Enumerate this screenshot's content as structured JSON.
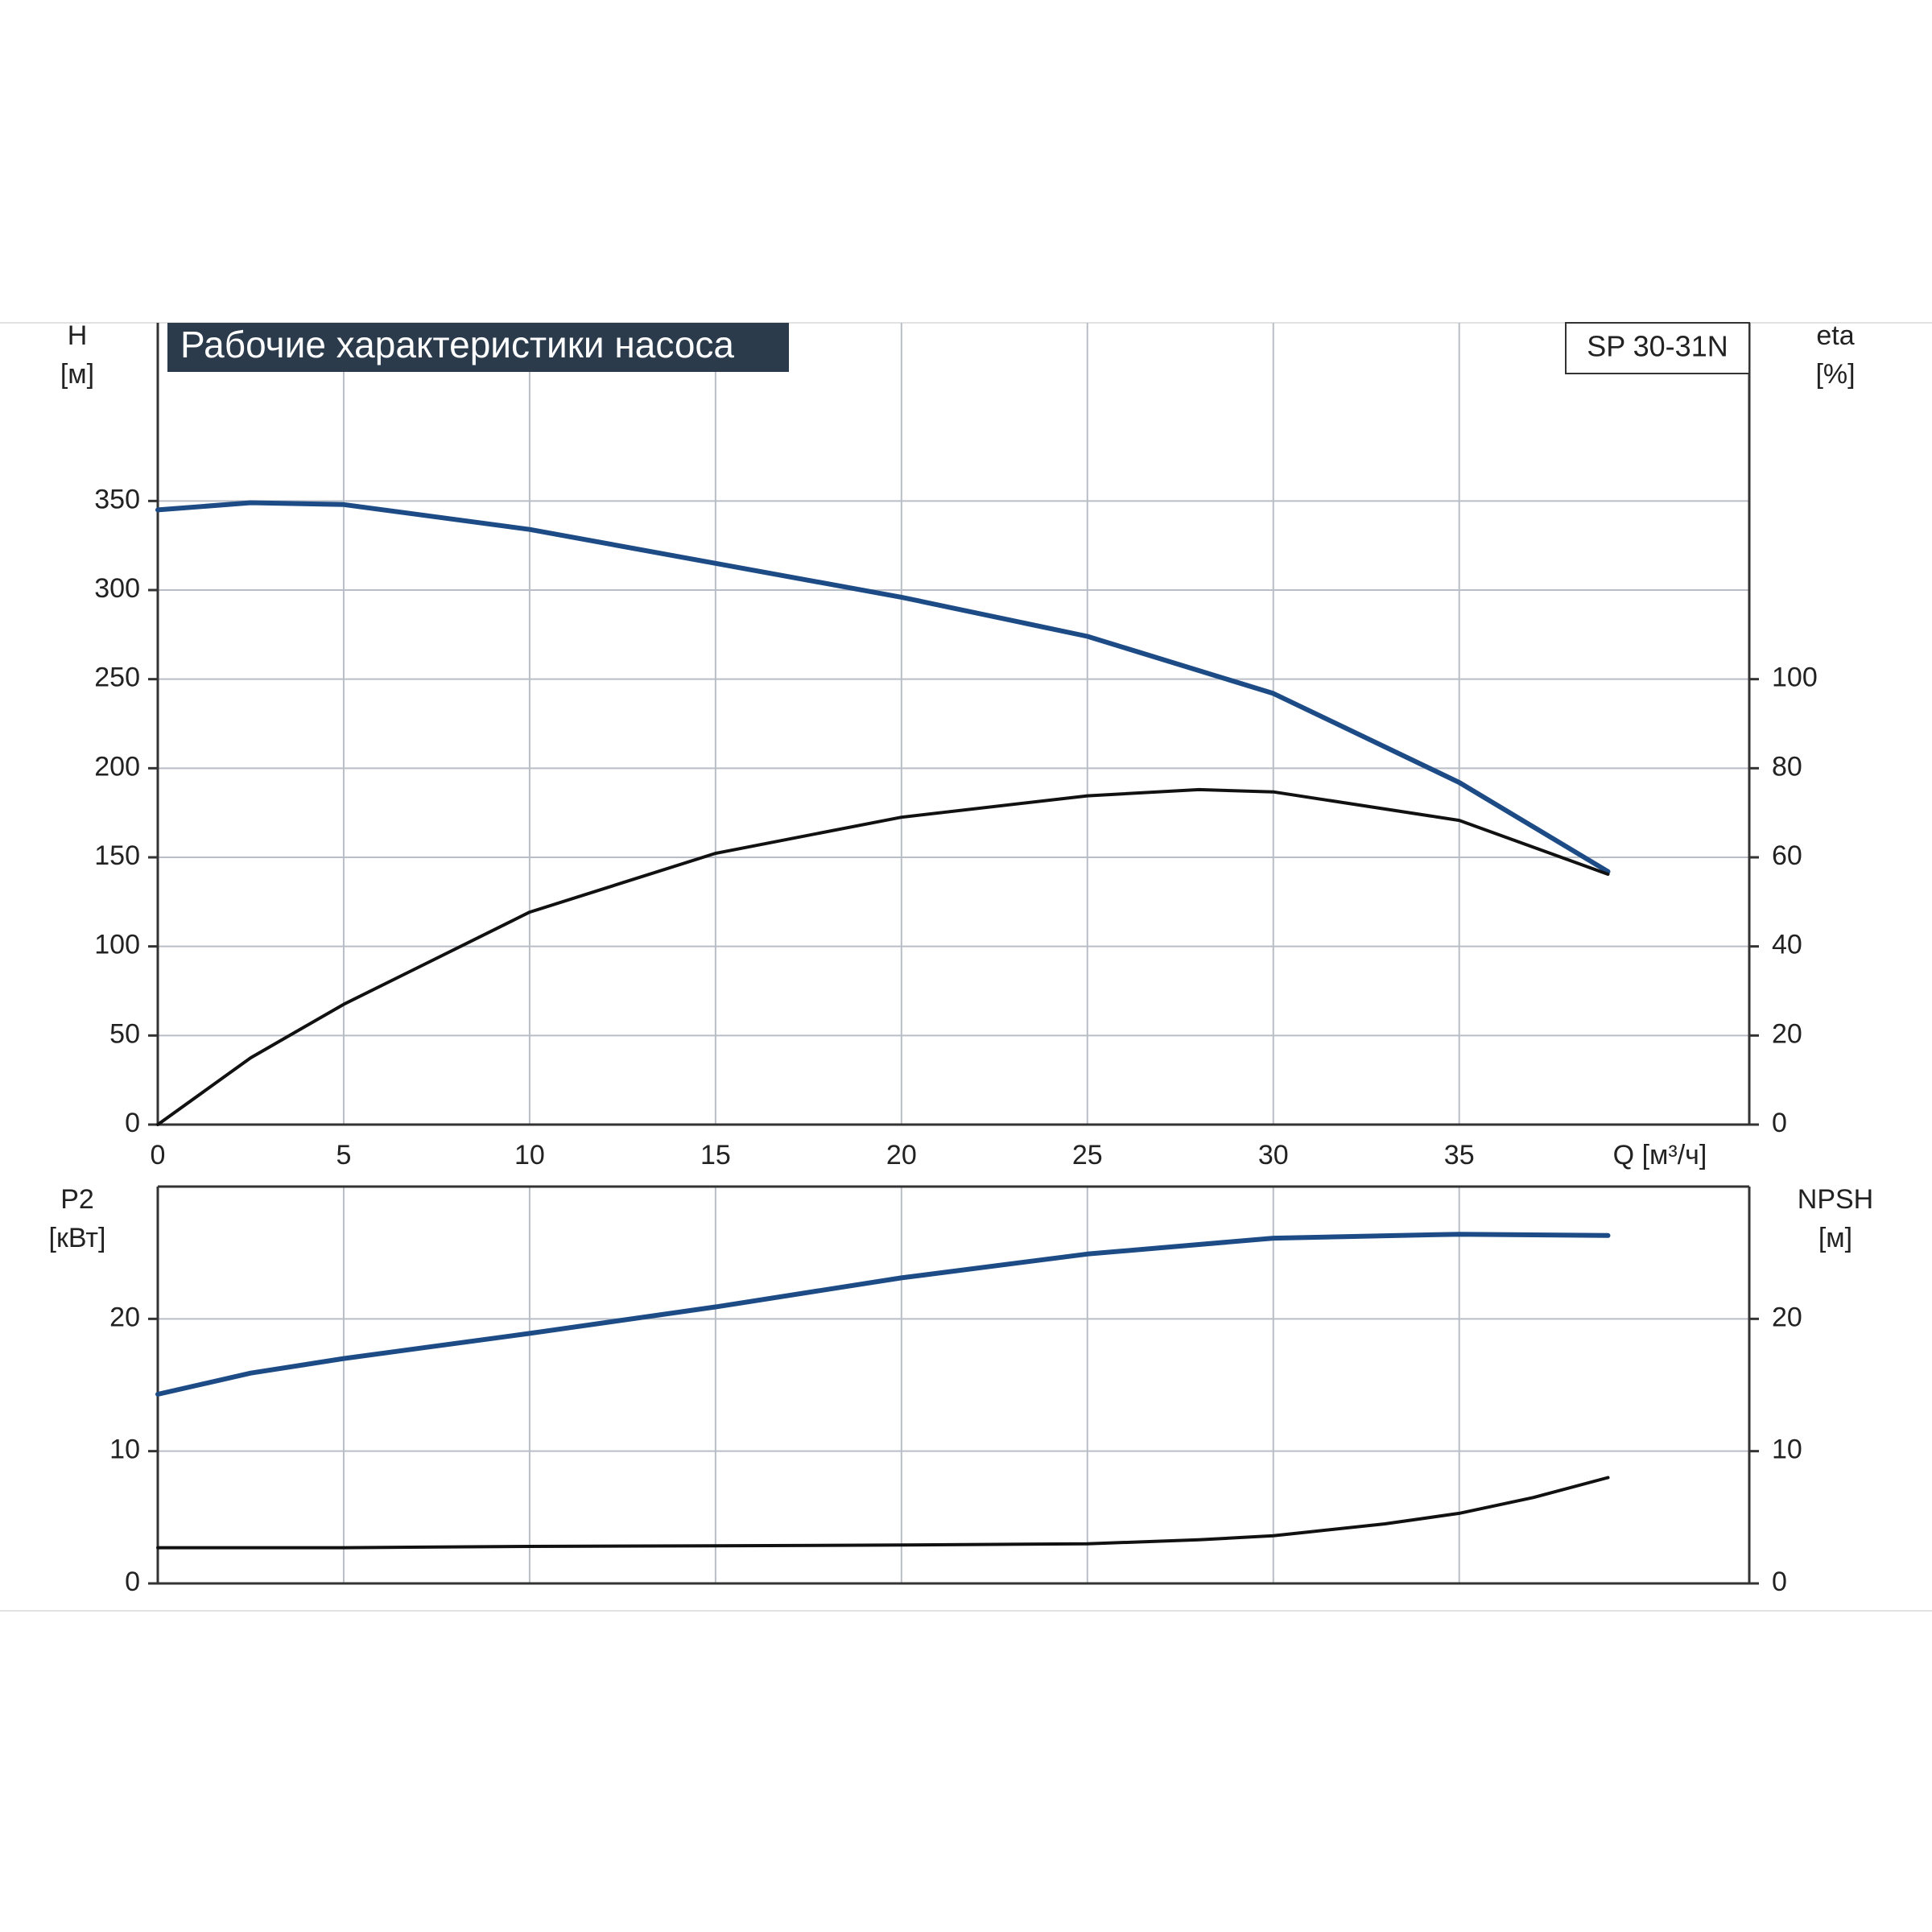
{
  "chart_data": [
    {
      "type": "line",
      "title": "Рабочие характеристики насоса",
      "annotation": "SP 30-31N",
      "xlabel": "Q [м³/ч]",
      "ylabel": [
        "H",
        "[м]"
      ],
      "y2label": [
        "eta",
        "[%]"
      ],
      "xlim": [
        0,
        42.8
      ],
      "xticks": [
        0,
        5,
        10,
        15,
        20,
        25,
        30,
        35
      ],
      "ylim": [
        0,
        450
      ],
      "yticks": [
        0,
        50,
        100,
        150,
        200,
        250,
        300,
        350
      ],
      "y2lim": [
        0,
        180
      ],
      "y2ticks": [
        0,
        20,
        40,
        60,
        80,
        100
      ],
      "grid": true,
      "series": [
        {
          "name": "H",
          "color": "#1d4b86",
          "x": [
            0,
            2.5,
            5,
            10,
            15,
            20,
            25,
            30,
            35,
            39
          ],
          "values": [
            345,
            349,
            348,
            334,
            315,
            296,
            274,
            242,
            192,
            142
          ]
        },
        {
          "name": "eta",
          "color": "#111111",
          "axis": "y2",
          "x": [
            0,
            2.5,
            5,
            10,
            15,
            20,
            25,
            28,
            30,
            35,
            39
          ],
          "values": [
            0,
            15,
            27,
            47.7,
            60.9,
            69,
            73.8,
            75.2,
            74.7,
            68.3,
            56.2
          ]
        }
      ]
    },
    {
      "type": "line",
      "ylabel": [
        "P2",
        "[кВт]"
      ],
      "y2label": [
        "NPSH",
        "[м]"
      ],
      "xlim": [
        0,
        42.8
      ],
      "ylim": [
        0,
        30
      ],
      "yticks": [
        0,
        10,
        20
      ],
      "y2lim": [
        0,
        30
      ],
      "y2ticks": [
        0,
        10,
        20
      ],
      "grid": true,
      "series": [
        {
          "name": "P2",
          "color": "#1d4b86",
          "x": [
            0,
            2.5,
            5,
            10,
            15,
            20,
            25,
            30,
            35,
            39
          ],
          "values": [
            14.3,
            15.9,
            17.0,
            18.9,
            20.9,
            23.1,
            24.9,
            26.1,
            26.4,
            26.3
          ]
        },
        {
          "name": "NPSH",
          "color": "#111111",
          "axis": "y2",
          "x": [
            0,
            5,
            10,
            15,
            20,
            25,
            28,
            30,
            33,
            35,
            37,
            39
          ],
          "values": [
            2.7,
            2.7,
            2.8,
            2.85,
            2.9,
            3.0,
            3.3,
            3.6,
            4.5,
            5.3,
            6.5,
            8.0
          ]
        }
      ]
    }
  ]
}
